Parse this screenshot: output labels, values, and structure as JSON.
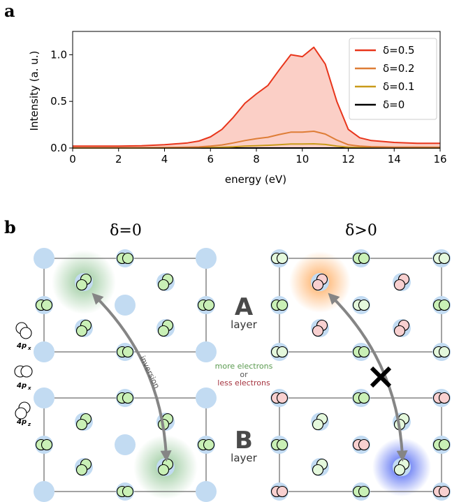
{
  "panel_a": {
    "letter": "a",
    "xlabel": "energy (eV)",
    "ylabel": "Intensity (a. u.)"
  },
  "chart_data": {
    "type": "area",
    "xlabel": "energy (eV)",
    "ylabel": "Intensity (a. u.)",
    "xlim": [
      0,
      16
    ],
    "ylim": [
      0,
      1.25
    ],
    "x_ticks": [
      "0",
      "2",
      "4",
      "6",
      "8",
      "10",
      "12",
      "14",
      "16"
    ],
    "y_ticks": [
      "0.0",
      "0.5",
      "1.0"
    ],
    "legend_position": "top-right",
    "grid": false,
    "x": [
      0,
      1,
      2,
      3,
      4,
      5,
      5.5,
      6,
      6.5,
      7,
      7.5,
      8,
      8.5,
      9,
      9.5,
      10,
      10.5,
      11,
      11.5,
      12,
      12.5,
      13,
      14,
      15,
      16
    ],
    "series": [
      {
        "name": "δ=0.5",
        "color": "#e8351b",
        "fill": "#fbcfc6",
        "values": [
          0.02,
          0.02,
          0.02,
          0.025,
          0.035,
          0.055,
          0.075,
          0.12,
          0.2,
          0.33,
          0.48,
          0.58,
          0.67,
          0.84,
          1.0,
          0.98,
          1.08,
          0.9,
          0.5,
          0.2,
          0.11,
          0.08,
          0.06,
          0.05,
          0.05
        ]
      },
      {
        "name": "δ=0.2",
        "color": "#de7d36",
        "values": [
          0.003,
          0.003,
          0.003,
          0.004,
          0.006,
          0.009,
          0.012,
          0.02,
          0.033,
          0.055,
          0.08,
          0.1,
          0.115,
          0.145,
          0.17,
          0.17,
          0.18,
          0.15,
          0.085,
          0.035,
          0.02,
          0.014,
          0.01,
          0.009,
          0.008
        ]
      },
      {
        "name": "δ=0.1",
        "color": "#c99a1a",
        "values": [
          0.001,
          0.001,
          0.001,
          0.001,
          0.0015,
          0.002,
          0.003,
          0.005,
          0.008,
          0.013,
          0.02,
          0.025,
          0.029,
          0.036,
          0.043,
          0.043,
          0.045,
          0.038,
          0.021,
          0.009,
          0.005,
          0.004,
          0.003,
          0.002,
          0.002
        ]
      },
      {
        "name": "δ=0",
        "color": "#000000",
        "values": [
          0,
          0,
          0,
          0,
          0,
          0,
          0,
          0,
          0,
          0,
          0,
          0,
          0,
          0,
          0,
          0,
          0,
          0,
          0,
          0,
          0,
          0,
          0,
          0,
          0
        ]
      }
    ]
  },
  "panel_b": {
    "letter": "b",
    "left_header": "δ=0",
    "right_header": "δ>0",
    "layer_a_letter": "A",
    "layer_b_letter": "B",
    "layer_word": "layer",
    "inversion_label": "inversion",
    "note_more": "more electrons",
    "note_or": "or",
    "note_less": "less electrons",
    "orbital_labels": [
      "4p",
      "4p",
      "4p"
    ],
    "orbital_subscripts": [
      "x",
      "x",
      "z"
    ],
    "colors": {
      "site_blue": "#c2dbf2",
      "green_fill": "#c9f0b6",
      "light_green_fill": "#e4f8dc",
      "red_fill": "#f8d0d0",
      "arrow_gray": "#858585",
      "note_green": "#5a9a4f",
      "note_red": "#a5333f",
      "glow_green": "#3f9a45",
      "glow_orange": "#ff9b3f",
      "glow_blue": "#3a55f0"
    }
  }
}
